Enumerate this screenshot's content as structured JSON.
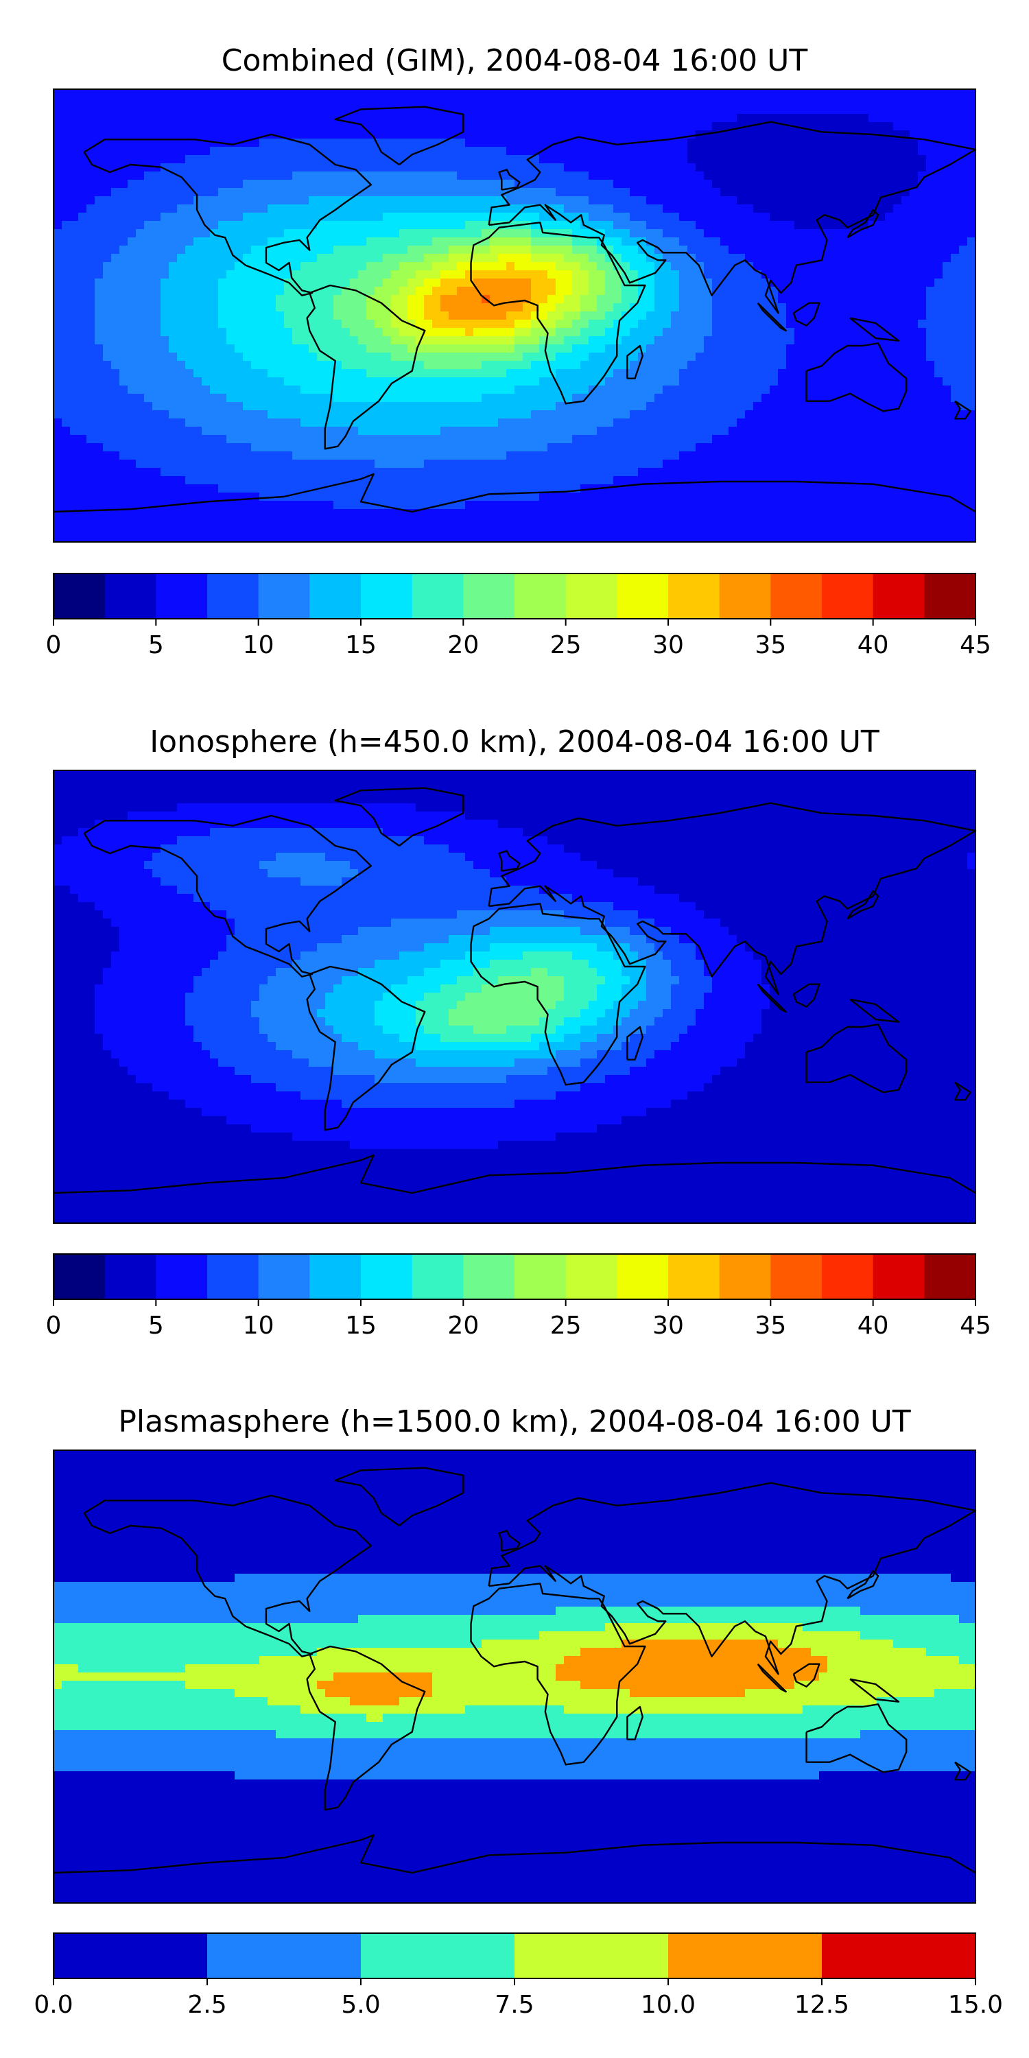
{
  "figure": {
    "panels": [
      {
        "id": "combined",
        "title": "Combined (GIM), 2004-08-04 16:00 UT",
        "colorbar": {
          "colors": [
            "#00008f",
            "#0000cc",
            "#0000ff",
            "#0040ff",
            "#0080ff",
            "#00bfff",
            "#00ffff",
            "#40ffbf",
            "#80ff80",
            "#bfff40",
            "#ffff00",
            "#ffbf00",
            "#ff8000",
            "#ff4000",
            "#ff0000",
            "#cc0000",
            "#800000"
          ],
          "colors_used": [
            "#00007f",
            "#0000c8",
            "#0a0aff",
            "#0f4bff",
            "#1e82ff",
            "#00bfff",
            "#00e6ff",
            "#37f5c3",
            "#6efa8c",
            "#a0ff50",
            "#c8ff32",
            "#f0ff00",
            "#ffc800",
            "#ff9600",
            "#ff5a00",
            "#ff2d00",
            "#dc0000",
            "#960000"
          ],
          "ticks": [
            "0",
            "5",
            "10",
            "15",
            "20",
            "25",
            "30",
            "35",
            "40",
            "45"
          ]
        },
        "field": {
          "base": 5.5,
          "bands": [
            {
              "lon": -45,
              "lat": -10,
              "sx": 80,
              "sy": 35,
              "amp": 12
            },
            {
              "lon": 10,
              "lat": 15,
              "sx": 30,
              "sy": 15,
              "amp": 14
            },
            {
              "lon": -20,
              "lat": 0,
              "sx": 22,
              "sy": 12,
              "amp": 10
            },
            {
              "lon": -60,
              "lat": 30,
              "sx": 70,
              "sy": 25,
              "amp": 5
            },
            {
              "lon": 100,
              "lat": 50,
              "sx": 60,
              "sy": 20,
              "amp": -2
            }
          ]
        }
      },
      {
        "id": "ionosphere",
        "title": "Ionosphere  (h=450.0 km), 2004-08-04 16:00 UT",
        "colorbar": {
          "colors_used": [
            "#00007f",
            "#0000c8",
            "#0a0aff",
            "#0f4bff",
            "#1e82ff",
            "#00bfff",
            "#00e6ff",
            "#37f5c3",
            "#6efa8c",
            "#a0ff50",
            "#c8ff32",
            "#f0ff00",
            "#ffc800",
            "#ff9600",
            "#ff5a00",
            "#ff2d00",
            "#dc0000",
            "#960000"
          ],
          "ticks": [
            "0",
            "5",
            "10",
            "15",
            "20",
            "25",
            "30",
            "35",
            "40",
            "45"
          ]
        },
        "field": {
          "base": 3.0,
          "bands": [
            {
              "lon": -35,
              "lat": -5,
              "sx": 70,
              "sy": 30,
              "amp": 11
            },
            {
              "lon": 20,
              "lat": 10,
              "sx": 30,
              "sy": 15,
              "amp": 9
            },
            {
              "lon": -10,
              "lat": -10,
              "sx": 25,
              "sy": 10,
              "amp": 6
            },
            {
              "lon": -90,
              "lat": 55,
              "sx": 60,
              "sy": 15,
              "amp": 6
            }
          ]
        }
      },
      {
        "id": "plasmasphere",
        "title": "Plasmasphere (h=1500.0 km), 2004-08-04 16:00 UT",
        "colorbar": {
          "colors_used": [
            "#0000c8",
            "#1e82ff",
            "#37f5c3",
            "#c8ff32",
            "#ff9600",
            "#dc0000"
          ],
          "ticks": [
            "0.0",
            "2.5",
            "5.0",
            "7.5",
            "10.0",
            "12.5",
            "15.0"
          ]
        },
        "field": {
          "base": 1.2,
          "bands": [
            {
              "lon": 0,
              "lat": 0,
              "sx": 600,
              "sy": 22,
              "amp": 6.5
            },
            {
              "lon": 60,
              "lat": 5,
              "sx": 45,
              "sy": 12,
              "amp": 3.5
            },
            {
              "lon": -55,
              "lat": -5,
              "sx": 22,
              "sy": 8,
              "amp": 3.8
            },
            {
              "lon": 90,
              "lat": 10,
              "sx": 40,
              "sy": 14,
              "amp": 1.8
            }
          ]
        }
      }
    ]
  }
}
